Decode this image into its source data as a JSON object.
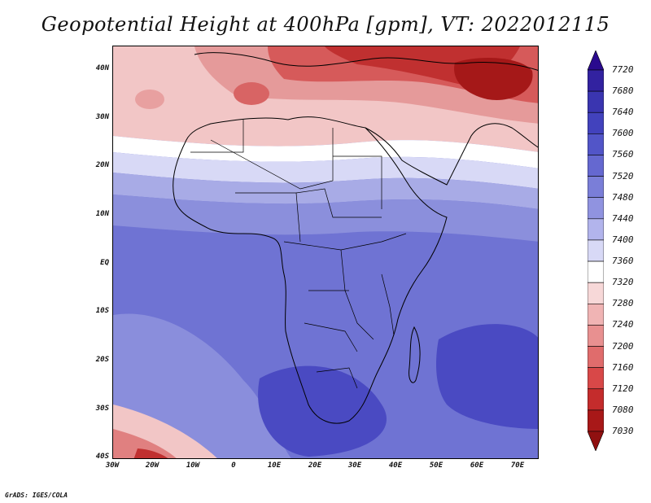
{
  "title": "Geopotential Height at 400hPa [gpm], VT: 2022012115",
  "credit": "GrADS: IGES/COLA",
  "lat_labels": [
    "40N",
    "30N",
    "20N",
    "10N",
    "EQ",
    "10S",
    "20S",
    "30S",
    "40S"
  ],
  "lon_labels": [
    "30W",
    "20W",
    "10W",
    "0",
    "10E",
    "20E",
    "30E",
    "40E",
    "50E",
    "60E",
    "70E"
  ],
  "colorbar": {
    "labels": [
      "7720",
      "7680",
      "7640",
      "7600",
      "7560",
      "7520",
      "7480",
      "7440",
      "7400",
      "7360",
      "7320",
      "7280",
      "7240",
      "7200",
      "7160",
      "7120",
      "7080",
      "7030"
    ],
    "colors": [
      "#2a0a8e",
      "#3222a0",
      "#3a35b0",
      "#4242bd",
      "#5255c8",
      "#6568d0",
      "#7a7ed8",
      "#9093e0",
      "#b2b4ec",
      "#d8d9f6",
      "#ffffff",
      "#f7d8d8",
      "#f0b4b4",
      "#e89090",
      "#e06c6c",
      "#d84848",
      "#c42c2c",
      "#a81818",
      "#901010"
    ]
  }
}
